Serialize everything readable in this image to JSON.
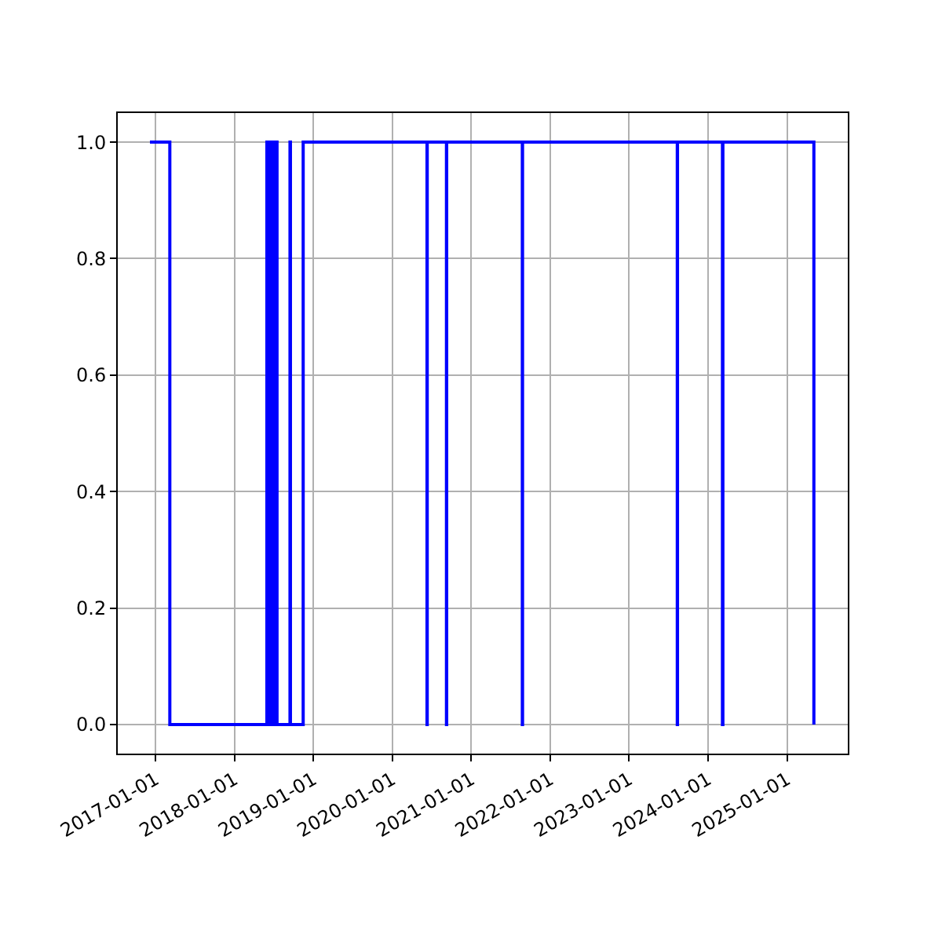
{
  "chart_data": {
    "type": "step",
    "x": [
      "2016-12-06",
      "2017-03-08",
      "2018-05-31",
      "2018-06-03",
      "2018-06-06",
      "2018-06-09",
      "2018-06-12",
      "2018-06-15",
      "2018-06-18",
      "2018-06-21",
      "2018-06-24",
      "2018-06-27",
      "2018-06-30",
      "2018-07-03",
      "2018-07-06",
      "2018-07-09",
      "2018-07-12",
      "2018-07-17",
      "2018-09-15",
      "2018-09-17",
      "2018-11-15",
      "2020-06-10",
      "2020-06-11",
      "2020-09-08",
      "2020-09-09",
      "2021-08-25",
      "2021-08-26",
      "2023-08-12",
      "2023-08-13",
      "2024-03-08",
      "2024-03-10",
      "2025-05-05"
    ],
    "series": [
      {
        "color": "#0000ff",
        "values": [
          1,
          0,
          1,
          0,
          1,
          0,
          1,
          0,
          1,
          0,
          1,
          0,
          1,
          0,
          1,
          0,
          1,
          0,
          1,
          0,
          1,
          0,
          1,
          0,
          1,
          0,
          1,
          0,
          1,
          0,
          1,
          0
        ]
      }
    ],
    "xlim": [
      "2016-07-10",
      "2025-10-09"
    ],
    "xticks": [
      "2017-01-01",
      "2018-01-01",
      "2019-01-01",
      "2020-01-01",
      "2021-01-01",
      "2022-01-01",
      "2023-01-01",
      "2024-01-01",
      "2025-01-01"
    ],
    "ylim": [
      -0.05,
      1.05
    ],
    "yticks": [
      {
        "value": 0,
        "label": "0.0"
      },
      {
        "value": 0.2,
        "label": "0.2"
      },
      {
        "value": 0.4,
        "label": "0.4"
      },
      {
        "value": 0.6,
        "label": "0.6"
      },
      {
        "value": 0.8,
        "label": "0.8"
      },
      {
        "value": 1,
        "label": "1.0"
      }
    ],
    "grid": true,
    "marker": "none",
    "line_style": "solid"
  }
}
